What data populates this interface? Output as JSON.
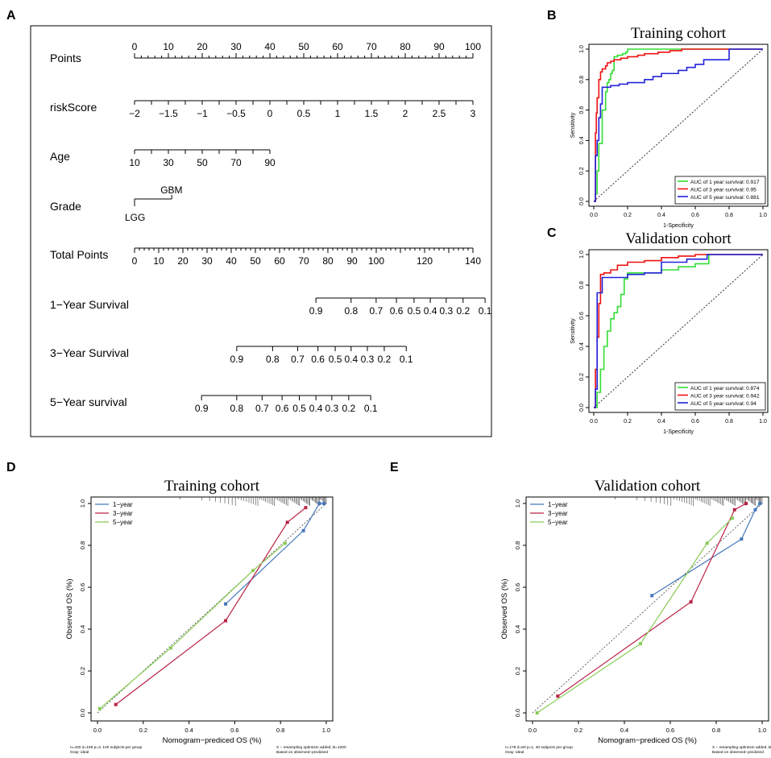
{
  "panel_letters": [
    "A",
    "B",
    "C",
    "D",
    "E"
  ],
  "colors": {
    "green": "#33dd33",
    "red": "#ee1111",
    "blue": "#2222dd",
    "cal_blue": "#4477bb",
    "cal_red": "#bb2244",
    "cal_green": "#88cc55",
    "axis": "#000000",
    "diag": "#333333"
  },
  "chart_data": [
    {
      "panel": "A",
      "type": "nomogram",
      "rows": [
        {
          "label": "Points",
          "ticks": [
            "0",
            "10",
            "20",
            "30",
            "40",
            "50",
            "60",
            "70",
            "80",
            "90",
            "100"
          ],
          "tick_values": [
            0,
            10,
            20,
            30,
            40,
            50,
            60,
            70,
            80,
            90,
            100
          ],
          "labels_above": true
        },
        {
          "label": "riskScore",
          "ticks": [
            "−2",
            "−1.5",
            "−1",
            "−0.5",
            "0",
            "0.5",
            "1",
            "1.5",
            "2",
            "2.5",
            "3"
          ],
          "points": [
            0,
            10,
            20,
            30,
            40,
            50,
            60,
            70,
            80,
            90,
            100
          ]
        },
        {
          "label": "Age",
          "ticks": [
            "10",
            "30",
            "50",
            "70",
            "90"
          ],
          "points": [
            0,
            10,
            20,
            30,
            40
          ]
        },
        {
          "label": "Grade",
          "ticks": [
            "LGG",
            "GBM"
          ],
          "points": [
            0,
            11
          ]
        },
        {
          "label": "Total Points",
          "ticks": [
            "0",
            "10",
            "20",
            "30",
            "40",
            "50",
            "60",
            "70",
            "80",
            "90",
            "100",
            "120",
            "140"
          ],
          "tick_values": [
            0,
            10,
            20,
            30,
            40,
            50,
            60,
            70,
            80,
            90,
            100,
            120,
            140
          ]
        },
        {
          "label": "1−Year Survival",
          "ticks": [
            "0.9",
            "0.8",
            "0.7",
            "0.6",
            "0.5",
            "0.4",
            "0.3",
            "0.2",
            "0.1"
          ],
          "points": [
            53.6,
            64,
            71.4,
            77.4,
            82.6,
            87.4,
            92.1,
            97.1,
            103.6
          ]
        },
        {
          "label": "3−Year Survival",
          "ticks": [
            "0.9",
            "0.8",
            "0.7",
            "0.6",
            "0.5",
            "0.4",
            "0.3",
            "0.2",
            "0.1"
          ],
          "points": [
            30.2,
            40.8,
            48.2,
            54.2,
            59.3,
            64,
            68.8,
            73.8,
            80.3
          ]
        },
        {
          "label": "5−Year survival",
          "ticks": [
            "0.9",
            "0.8",
            "0.7",
            "0.6",
            "0.5",
            "0.4",
            "0.3",
            "0.2",
            "0.1"
          ],
          "points": [
            19.8,
            30.2,
            37.7,
            43.6,
            48.7,
            53.6,
            58.3,
            63.3,
            69.8
          ]
        }
      ]
    },
    {
      "panel": "B",
      "type": "line",
      "title": "Training cohort",
      "xlabel": "1-Specificity",
      "ylabel": "Sensitivity",
      "xlim": [
        0,
        1
      ],
      "ylim": [
        0,
        1
      ],
      "ticks": [
        "0.0",
        "0.2",
        "0.4",
        "0.6",
        "0.8",
        "1.0"
      ],
      "tick_values": [
        0,
        0.2,
        0.4,
        0.6,
        0.8,
        1.0
      ],
      "legend": "bottom-right",
      "series": [
        {
          "name": "AUC of 1 year survival:",
          "auc": "0.917",
          "color": "green",
          "x": [
            0,
            0.01,
            0.02,
            0.03,
            0.05,
            0.07,
            0.08,
            0.09,
            0.1,
            0.11,
            0.12,
            0.14,
            0.17,
            0.19,
            0.2,
            0.22,
            1.0
          ],
          "y": [
            0,
            0.05,
            0.2,
            0.38,
            0.6,
            0.72,
            0.78,
            0.8,
            0.84,
            0.86,
            0.95,
            0.96,
            0.97,
            0.98,
            1.0,
            1.0,
            1.0
          ]
        },
        {
          "name": "AUC of 3 year survival:",
          "auc": "0.95",
          "color": "red",
          "x": [
            0,
            0.01,
            0.015,
            0.02,
            0.03,
            0.04,
            0.05,
            0.07,
            0.08,
            0.1,
            0.12,
            0.16,
            0.2,
            0.26,
            0.3,
            0.38,
            0.45,
            0.52,
            1.0
          ],
          "y": [
            0,
            0.45,
            0.58,
            0.68,
            0.8,
            0.85,
            0.87,
            0.89,
            0.91,
            0.92,
            0.93,
            0.94,
            0.95,
            0.96,
            0.97,
            0.98,
            0.99,
            1.0,
            1.0
          ]
        },
        {
          "name": "AUC of 5 year survival:",
          "auc": "0.881",
          "color": "blue",
          "x": [
            0,
            0.01,
            0.02,
            0.03,
            0.04,
            0.05,
            0.1,
            0.15,
            0.2,
            0.3,
            0.35,
            0.4,
            0.5,
            0.55,
            0.6,
            0.65,
            0.8,
            1.0
          ],
          "y": [
            0,
            0.3,
            0.4,
            0.55,
            0.64,
            0.75,
            0.76,
            0.77,
            0.78,
            0.8,
            0.82,
            0.84,
            0.86,
            0.88,
            0.9,
            0.93,
            1.0,
            1.0
          ]
        }
      ]
    },
    {
      "panel": "C",
      "type": "line",
      "title": "Validation cohort",
      "xlabel": "1-Specificity",
      "ylabel": "Sensitivity",
      "xlim": [
        0,
        1
      ],
      "ylim": [
        0,
        1
      ],
      "ticks": [
        "0.0",
        "0.2",
        "0.4",
        "0.6",
        "0.8",
        "1.0"
      ],
      "tick_values": [
        0,
        0.2,
        0.4,
        0.6,
        0.8,
        1.0
      ],
      "legend": "bottom-right",
      "series": [
        {
          "name": "AUC of 1 year survival:",
          "auc": "0.874",
          "color": "green",
          "x": [
            0,
            0.02,
            0.04,
            0.06,
            0.08,
            0.1,
            0.12,
            0.14,
            0.16,
            0.18,
            0.2,
            0.3,
            0.4,
            0.5,
            0.6,
            0.68,
            1.0
          ],
          "y": [
            0,
            0.1,
            0.25,
            0.4,
            0.5,
            0.58,
            0.62,
            0.66,
            0.74,
            0.84,
            0.88,
            0.88,
            0.9,
            0.92,
            0.94,
            1.0,
            1.0
          ]
        },
        {
          "name": "AUC of 3 year survival:",
          "auc": "0.942",
          "color": "red",
          "x": [
            0,
            0.01,
            0.02,
            0.03,
            0.04,
            0.06,
            0.1,
            0.14,
            0.2,
            0.3,
            0.4,
            0.5,
            0.6,
            1.0
          ],
          "y": [
            0,
            0.25,
            0.46,
            0.68,
            0.87,
            0.88,
            0.9,
            0.93,
            0.95,
            0.96,
            0.98,
            0.99,
            1.0,
            1.0
          ]
        },
        {
          "name": "AUC of 5 year survival:",
          "auc": "0.94",
          "color": "blue",
          "x": [
            0,
            0.01,
            0.02,
            0.03,
            0.04,
            0.05,
            0.1,
            0.2,
            0.3,
            0.4,
            0.55,
            0.67,
            1.0
          ],
          "y": [
            0,
            0.12,
            0.75,
            0.75,
            0.75,
            0.85,
            0.85,
            0.87,
            0.88,
            0.95,
            0.97,
            1.0,
            1.0
          ]
        }
      ]
    },
    {
      "panel": "D",
      "type": "line",
      "title": "Training cohort",
      "xlabel": "Nomogram−prediced OS (%)",
      "ylabel": "Observed OS (%)",
      "xlim": [
        0,
        1
      ],
      "ylim": [
        0,
        1
      ],
      "ticks": [
        "0.0",
        "0.2",
        "0.4",
        "0.6",
        "0.8",
        "1.0"
      ],
      "tick_values": [
        0,
        0.2,
        0.4,
        0.6,
        0.8,
        1.0
      ],
      "legend": "top-left",
      "footnote_left": [
        "n=420 d=159 p=3, 100 subjects per group",
        "Gray: ideal"
      ],
      "footnote_right": [
        "X − resampling optimism added, B=1000",
        "Based on observed−predicted"
      ],
      "series": [
        {
          "name": "1−year",
          "color": "cal_blue",
          "x": [
            0.56,
            0.9,
            0.97,
            0.99
          ],
          "y": [
            0.52,
            0.87,
            1.0,
            1.0
          ]
        },
        {
          "name": "3−year",
          "color": "cal_red",
          "x": [
            0.08,
            0.56,
            0.83,
            0.91
          ],
          "y": [
            0.04,
            0.44,
            0.91,
            0.98
          ]
        },
        {
          "name": "5−year",
          "color": "cal_green",
          "x": [
            0.01,
            0.32,
            0.68,
            0.82
          ],
          "y": [
            0.02,
            0.31,
            0.68,
            0.81
          ]
        }
      ]
    },
    {
      "panel": "E",
      "type": "line",
      "title": "Validation cohort",
      "xlabel": "Nomogram−prediced OS (%)",
      "ylabel": "Observed OS (%)",
      "xlim": [
        0,
        1
      ],
      "ylim": [
        0,
        1
      ],
      "ticks": [
        "0.0",
        "0.2",
        "0.4",
        "0.6",
        "0.8",
        "1.0"
      ],
      "tick_values": [
        0,
        0.2,
        0.4,
        0.6,
        0.8,
        1.0
      ],
      "legend": "top-left",
      "footnote_left": [
        "n=178 d=60 p=1, 40 subjects per group",
        "Gray: ideal"
      ],
      "footnote_right": [
        "X − resampling optimism added, B=1000",
        "Based on observed−predicted"
      ],
      "series": [
        {
          "name": "1−year",
          "color": "cal_blue",
          "x": [
            0.52,
            0.91,
            0.97,
            0.99
          ],
          "y": [
            0.56,
            0.83,
            0.97,
            1.0
          ]
        },
        {
          "name": "3−year",
          "color": "cal_red",
          "x": [
            0.11,
            0.69,
            0.88,
            0.93
          ],
          "y": [
            0.08,
            0.53,
            0.97,
            1.0
          ]
        },
        {
          "name": "5−year",
          "color": "cal_green",
          "x": [
            0.02,
            0.47,
            0.76,
            0.87
          ],
          "y": [
            0.0,
            0.33,
            0.81,
            0.93
          ]
        }
      ]
    }
  ]
}
